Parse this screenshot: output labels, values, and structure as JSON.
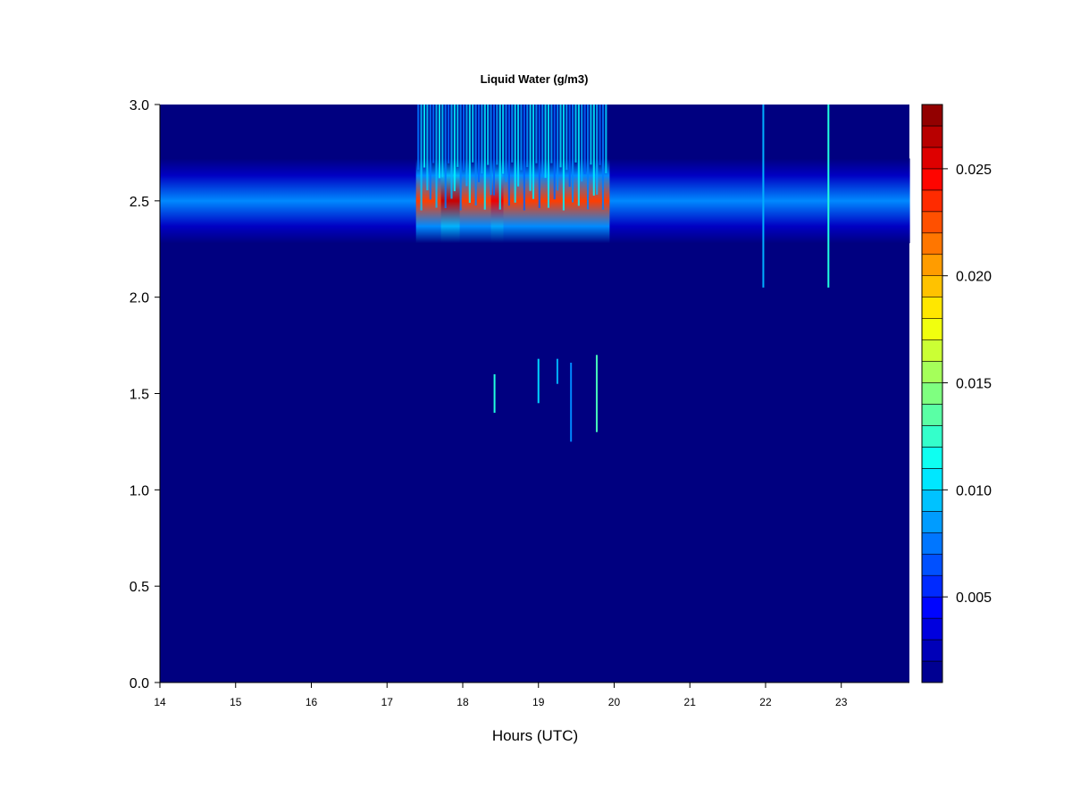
{
  "chart_data": {
    "type": "heatmap",
    "title": "Liquid Water (g/m3)",
    "xlabel": "Hours (UTC)",
    "ylabel": "",
    "xlim": [
      14,
      23.9
    ],
    "ylim": [
      0,
      3
    ],
    "xticks": [
      "14",
      "15",
      "16",
      "17",
      "18",
      "19",
      "20",
      "21",
      "22",
      "23"
    ],
    "yticks": [
      "0.0",
      "0.5",
      "1.0",
      "1.5",
      "2.0",
      "2.5",
      "3.0"
    ],
    "colorbar": {
      "min": 0.001,
      "max": 0.028,
      "ticks": [
        "0.005",
        "0.010",
        "0.015",
        "0.020",
        "0.025"
      ],
      "levels": 27,
      "colors": [
        "#00007F",
        "#0000AF",
        "#0000DF",
        "#0010FF",
        "#0040FF",
        "#0070FF",
        "#00A0FF",
        "#00D0FF",
        "#10FFEF",
        "#40FFBF",
        "#70FF8F",
        "#A0FF5F",
        "#D0FF2F",
        "#FFFF00",
        "#FFDF00",
        "#FFB000",
        "#FF8000",
        "#FF5000",
        "#FF2000",
        "#EF0000",
        "#BF0000",
        "#8F0000"
      ]
    },
    "background_value": 0.001,
    "cloud_layer": {
      "center_km": 2.5,
      "half_width_km": 0.22,
      "base_value": 0.008,
      "peak_regions": [
        {
          "start": 17.4,
          "end": 19.9,
          "peak": 0.023
        },
        {
          "start": 17.75,
          "end": 18.0,
          "peak": 0.026
        },
        {
          "start": 18.35,
          "end": 18.5,
          "peak": 0.025
        }
      ]
    },
    "vertical_streaks": [
      {
        "x": 18.42,
        "y": [
          1.4,
          1.6
        ],
        "value": 0.012
      },
      {
        "x": 19.0,
        "y": [
          1.45,
          1.68
        ],
        "value": 0.01
      },
      {
        "x": 19.25,
        "y": [
          1.55,
          1.68
        ],
        "value": 0.009
      },
      {
        "x": 19.43,
        "y": [
          1.25,
          1.66
        ],
        "value": 0.008
      },
      {
        "x": 19.77,
        "y": [
          1.3,
          1.7
        ],
        "value": 0.013
      },
      {
        "x": 21.97,
        "y": [
          2.05,
          3.0
        ],
        "value": 0.009
      },
      {
        "x": 22.83,
        "y": [
          2.05,
          3.0
        ],
        "value": 0.012
      }
    ]
  }
}
